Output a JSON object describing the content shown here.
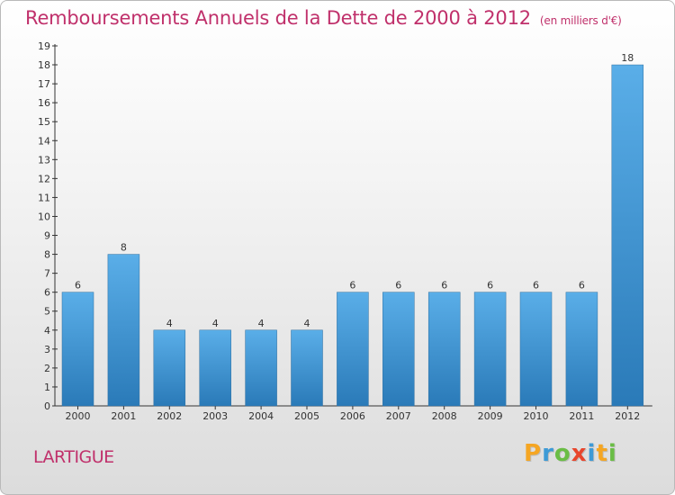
{
  "title": "Remboursements Annuels de la Dette de 2000 à 2012",
  "subtitle": "(en milliers d'€)",
  "location": "LARTIGUE",
  "brand": {
    "letters": [
      "P",
      "r",
      "o",
      "x",
      "i",
      "t",
      "i"
    ],
    "colors": [
      "#f5a623",
      "#3d9ad6",
      "#6abd45",
      "#e8452c",
      "#3d9ad6",
      "#f5a623",
      "#6abd45"
    ]
  },
  "colors": {
    "bar_top": "#5aaee8",
    "bar_bottom": "#2a7ab8",
    "title": "#c0306b",
    "axis": "#333333"
  },
  "chart_data": {
    "type": "bar",
    "categories": [
      "2000",
      "2001",
      "2002",
      "2003",
      "2004",
      "2005",
      "2006",
      "2007",
      "2008",
      "2009",
      "2010",
      "2011",
      "2012"
    ],
    "values": [
      6,
      8,
      4,
      4,
      4,
      4,
      6,
      6,
      6,
      6,
      6,
      6,
      18
    ],
    "data_labels": [
      "6",
      "8",
      "4",
      "4",
      "4",
      "4",
      "6",
      "6",
      "6",
      "6",
      "6",
      "6",
      "18"
    ],
    "title": "Remboursements Annuels de la Dette de 2000 à 2012",
    "subtitle": "(en milliers d'€)",
    "xlabel": "",
    "ylabel": "",
    "ylim": [
      0,
      19
    ],
    "yticks": [
      "0",
      "1",
      "2",
      "3",
      "4",
      "5",
      "6",
      "7",
      "8",
      "9",
      "10",
      "11",
      "12",
      "13",
      "14",
      "15",
      "16",
      "17",
      "18",
      "19"
    ],
    "grid": false,
    "legend": "none"
  }
}
